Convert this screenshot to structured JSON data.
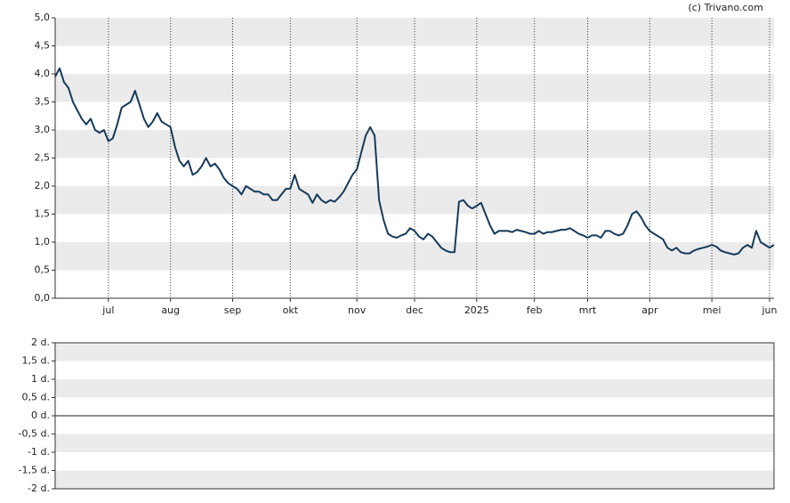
{
  "chart_data": [
    {
      "type": "line",
      "source": "(c) Trivano.com",
      "categories": [
        null,
        null,
        null,
        null,
        null,
        null,
        null,
        null,
        null,
        null,
        null,
        null,
        "jul",
        null,
        null,
        null,
        null,
        null,
        null,
        null,
        null,
        null,
        null,
        null,
        null,
        null,
        "aug",
        null,
        null,
        null,
        null,
        null,
        null,
        null,
        null,
        null,
        null,
        null,
        null,
        null,
        "sep",
        null,
        null,
        null,
        null,
        null,
        null,
        null,
        null,
        null,
        null,
        null,
        null,
        "okt",
        null,
        null,
        null,
        null,
        null,
        null,
        null,
        null,
        null,
        null,
        null,
        null,
        null,
        null,
        "nov",
        null,
        null,
        null,
        null,
        null,
        null,
        null,
        null,
        null,
        null,
        null,
        null,
        "dec",
        null,
        null,
        null,
        null,
        null,
        null,
        null,
        null,
        null,
        null,
        null,
        null,
        null,
        "2025",
        null,
        null,
        null,
        null,
        null,
        null,
        null,
        null,
        null,
        null,
        null,
        null,
        "feb",
        null,
        null,
        null,
        null,
        null,
        null,
        null,
        null,
        null,
        null,
        null,
        "mrt",
        null,
        null,
        null,
        null,
        null,
        null,
        null,
        null,
        null,
        null,
        null,
        null,
        null,
        "apr",
        null,
        null,
        null,
        null,
        null,
        null,
        null,
        null,
        null,
        null,
        null,
        null,
        null,
        "mei",
        null,
        null,
        null,
        null,
        null,
        null,
        null,
        null,
        null,
        null,
        null,
        null,
        "jun",
        null
      ],
      "series": [
        {
          "color": "#163a5a",
          "values": [
            3.95,
            4.1,
            3.85,
            3.75,
            3.5,
            3.35,
            3.2,
            3.1,
            3.2,
            3.0,
            2.95,
            3.0,
            2.8,
            2.85,
            3.1,
            3.4,
            3.45,
            3.5,
            3.7,
            3.45,
            3.2,
            3.05,
            3.15,
            3.3,
            3.15,
            3.1,
            3.05,
            2.7,
            2.45,
            2.35,
            2.45,
            2.2,
            2.25,
            2.35,
            2.5,
            2.35,
            2.4,
            2.3,
            2.15,
            2.05,
            2.0,
            1.95,
            1.85,
            2.0,
            1.95,
            1.9,
            1.9,
            1.85,
            1.85,
            1.75,
            1.75,
            1.85,
            1.95,
            1.95,
            2.2,
            1.95,
            1.9,
            1.85,
            1.7,
            1.85,
            1.75,
            1.7,
            1.75,
            1.72,
            1.8,
            1.9,
            2.05,
            2.2,
            2.3,
            2.6,
            2.9,
            3.05,
            2.9,
            1.75,
            1.4,
            1.15,
            1.1,
            1.08,
            1.12,
            1.15,
            1.25,
            1.2,
            1.1,
            1.05,
            1.15,
            1.1,
            1.0,
            0.9,
            0.85,
            0.82,
            0.82,
            1.72,
            1.75,
            1.65,
            1.6,
            1.65,
            1.7,
            1.5,
            1.3,
            1.15,
            1.2,
            1.2,
            1.2,
            1.18,
            1.22,
            1.2,
            1.18,
            1.15,
            1.15,
            1.2,
            1.15,
            1.18,
            1.18,
            1.2,
            1.22,
            1.22,
            1.25,
            1.2,
            1.15,
            1.12,
            1.08,
            1.12,
            1.12,
            1.08,
            1.2,
            1.2,
            1.15,
            1.12,
            1.15,
            1.3,
            1.5,
            1.55,
            1.45,
            1.3,
            1.2,
            1.15,
            1.1,
            1.05,
            0.9,
            0.85,
            0.9,
            0.82,
            0.8,
            0.8,
            0.85,
            0.88,
            0.9,
            0.92,
            0.95,
            0.92,
            0.85,
            0.82,
            0.8,
            0.78,
            0.8,
            0.9,
            0.95,
            0.9,
            1.2,
            1.0,
            0.95,
            0.9,
            0.95
          ]
        }
      ],
      "ylim": [
        0,
        5
      ],
      "yticks": [
        {
          "value": 0,
          "label": "0,0"
        },
        {
          "value": 0.5,
          "label": "0,5"
        },
        {
          "value": 1,
          "label": "1,0"
        },
        {
          "value": 1.5,
          "label": "1,5"
        },
        {
          "value": 2,
          "label": "2,0"
        },
        {
          "value": 2.5,
          "label": "2,5"
        },
        {
          "value": 3,
          "label": "3,0"
        },
        {
          "value": 3.5,
          "label": "3,5"
        },
        {
          "value": 4,
          "label": "4,0"
        },
        {
          "value": 4.5,
          "label": "4,5"
        },
        {
          "value": 5,
          "label": "5,0"
        }
      ]
    },
    {
      "type": "line",
      "ylim": [
        -2,
        2
      ],
      "yticks": [
        {
          "value": -2,
          "label": "-2 d."
        },
        {
          "value": -1.5,
          "label": "-1,5 d."
        },
        {
          "value": -1,
          "label": "-1 d."
        },
        {
          "value": -0.5,
          "label": "-0,5 d."
        },
        {
          "value": 0,
          "label": "0 d."
        },
        {
          "value": 0.5,
          "label": "0,5 d."
        },
        {
          "value": 1,
          "label": "1 d."
        },
        {
          "value": 1.5,
          "label": "1,5 d."
        },
        {
          "value": 2,
          "label": "2 d."
        }
      ]
    }
  ]
}
